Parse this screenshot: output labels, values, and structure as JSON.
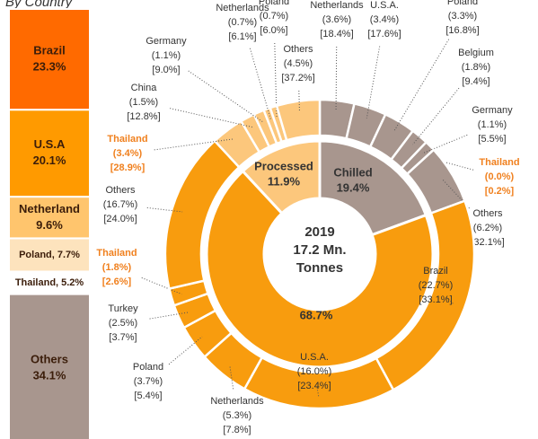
{
  "chart_data": [
    {
      "type": "sunburst",
      "center_text": [
        "2019",
        "17.2 Mn.",
        "Tonnes"
      ],
      "series": [
        {
          "name": "Chilled",
          "color": "#a8968e",
          "value": 19.4,
          "value_label": "19.4%",
          "segments": [
            {
              "name": "Netherlands",
              "value": 3.6,
              "value_label": "(3.6%)",
              "share": 18.4,
              "share_label": "[18.4%]"
            },
            {
              "name": "U.S.A.",
              "value": 3.4,
              "value_label": "(3.4%)",
              "share": 17.6,
              "share_label": "[17.6%]"
            },
            {
              "name": "Poland",
              "value": 3.3,
              "value_label": "(3.3%)",
              "share": 16.8,
              "share_label": "[16.8%]"
            },
            {
              "name": "Belgium",
              "value": 1.8,
              "value_label": "(1.8%)",
              "share": 9.4,
              "share_label": "[9.4%]"
            },
            {
              "name": "Germany",
              "value": 1.1,
              "value_label": "(1.1%)",
              "share": 5.5,
              "share_label": "[5.5%]"
            },
            {
              "name": "Thailand",
              "value": 0.0,
              "value_label": "(0.0%)",
              "share": 0.2,
              "share_label": "[0.2%]",
              "label_color": "#f0801e"
            },
            {
              "name": "Others",
              "value": 6.2,
              "value_label": "(6.2%)",
              "share": 32.1,
              "share_label": "[32.1%]"
            }
          ]
        },
        {
          "name": "Frozen",
          "color": "#f89c0e",
          "value": 68.7,
          "value_label": "68.7%",
          "segments": [
            {
              "name": "Brazil",
              "value": 22.7,
              "value_label": "(22.7%)",
              "share": 33.1,
              "share_label": "[33.1%]"
            },
            {
              "name": "U.S.A.",
              "value": 16.0,
              "value_label": "(16.0%)",
              "share": 23.4,
              "share_label": "[23.4%]"
            },
            {
              "name": "Netherlands",
              "value": 5.3,
              "value_label": "(5.3%)",
              "share": 7.8,
              "share_label": "[7.8%]"
            },
            {
              "name": "Poland",
              "value": 3.7,
              "value_label": "(3.7%)",
              "share": 5.4,
              "share_label": "[5.4%]"
            },
            {
              "name": "Turkey",
              "value": 2.5,
              "value_label": "(2.5%)",
              "share": 3.7,
              "share_label": "[3.7%]"
            },
            {
              "name": "Thailand",
              "value": 1.8,
              "value_label": "(1.8%)",
              "share": 2.6,
              "share_label": "[2.6%]",
              "label_color": "#f0801e"
            },
            {
              "name": "Others",
              "value": 16.7,
              "value_label": "(16.7%)",
              "share": 24.0,
              "share_label": "[24.0%]"
            }
          ]
        },
        {
          "name": "Processed",
          "color": "#fcc77c",
          "value": 11.9,
          "value_label": "11.9%",
          "segments": [
            {
              "name": "Thailand",
              "value": 3.4,
              "value_label": "(3.4%)",
              "share": 28.9,
              "share_label": "[28.9%]",
              "label_color": "#f0801e"
            },
            {
              "name": "China",
              "value": 1.5,
              "value_label": "(1.5%)",
              "share": 12.8,
              "share_label": "[12.8%]"
            },
            {
              "name": "Germany",
              "value": 1.1,
              "value_label": "(1.1%)",
              "share": 9.0,
              "share_label": "[9.0%]"
            },
            {
              "name": "Netherlands",
              "value": 0.7,
              "value_label": "(0.7%)",
              "share": 6.1,
              "share_label": "[6.1%]"
            },
            {
              "name": "Poland",
              "value": 0.7,
              "value_label": "(0.7%)",
              "share": 6.0,
              "share_label": "[6.0%]"
            },
            {
              "name": "Others",
              "value": 4.5,
              "value_label": "(4.5%)",
              "share": 37.2,
              "share_label": "[37.2%]"
            }
          ]
        }
      ]
    },
    {
      "type": "stacked_bar",
      "title": "By Country",
      "categories": [
        "Brazil",
        "U.S.A",
        "Netherland",
        "Poland,",
        "Thailand,",
        "Others"
      ],
      "values": [
        23.3,
        20.1,
        9.6,
        7.7,
        5.2,
        34.1
      ],
      "value_labels": [
        "23.3%",
        "20.1%",
        "9.6%",
        "7.7%",
        "5.2%",
        "34.1%"
      ],
      "colors": [
        "#ff6a00",
        "#ff9a00",
        "#ffc56d",
        "#fde3bd",
        "#ffffff",
        "#a8968e"
      ]
    }
  ]
}
